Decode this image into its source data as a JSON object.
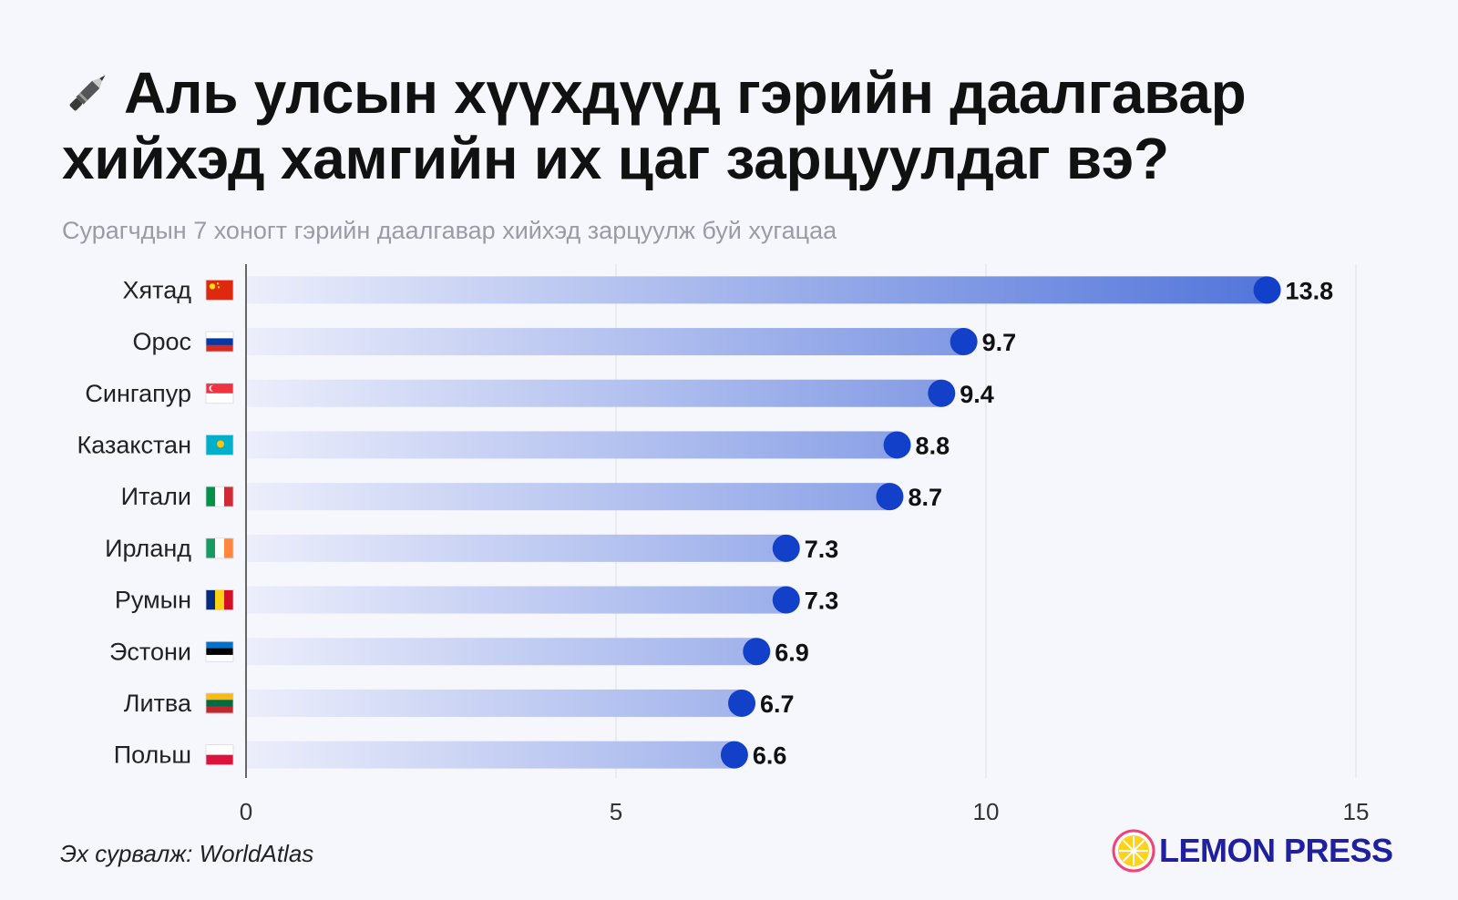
{
  "title": "Аль улсын хүүхдүүд гэрийн даалгавар хийхэд хамгийн их цаг зарцуулдаг вэ?",
  "subtitle": "Сурагчдын 7 хоногт гэрийн даалгавар хийхэд зарцуулж буй хугацаа",
  "source": "Эх сурвалж: WorldAtlas",
  "brand": "LEMON PRESS",
  "title_icon": "pen-icon",
  "colors": {
    "dot": "#1240c8",
    "bar_start": "#eceefb",
    "bar_end": "#5577db",
    "grid": "#e2e2ec",
    "axis": "#666666"
  },
  "chart_data": {
    "type": "bar",
    "orientation": "horizontal",
    "style": "lollipop-gradient",
    "title": "Аль улсын хүүхдүүд гэрийн даалгавар хийхэд хамгийн их цаг зарцуулдаг вэ?",
    "subtitle": "Сурагчдын 7 хоногт гэрийн даалгавар хийхэд зарцуулж буй хугацаа",
    "categories": [
      "Хятад",
      "Орос",
      "Сингапур",
      "Казакстан",
      "Итали",
      "Ирланд",
      "Румын",
      "Эстони",
      "Литва",
      "Польш"
    ],
    "flags": [
      "china",
      "russia",
      "singapore",
      "kazakhstan",
      "italy",
      "ireland",
      "romania",
      "estonia",
      "lithuania",
      "poland"
    ],
    "values": [
      13.8,
      9.7,
      9.4,
      8.8,
      8.7,
      7.3,
      7.3,
      6.9,
      6.7,
      6.6
    ],
    "value_labels": [
      "13.8",
      "9.7",
      "9.4",
      "8.8",
      "8.7",
      "7.3",
      "7.3",
      "6.9",
      "6.7",
      "6.6"
    ],
    "xlim": [
      0,
      15
    ],
    "xticks": [
      0,
      5,
      10,
      15
    ],
    "xtick_labels": [
      "0",
      "5",
      "10",
      "15"
    ],
    "grid": true,
    "legend": "none"
  }
}
